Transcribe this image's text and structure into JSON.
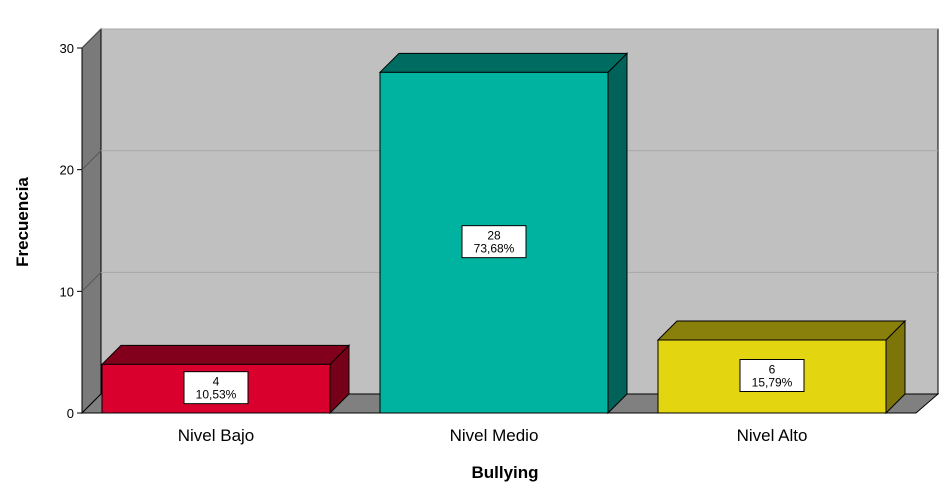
{
  "chart_data": {
    "type": "bar",
    "title": "",
    "xlabel": "Bullying",
    "ylabel": "Frecuencia",
    "ylim": [
      0,
      30
    ],
    "yticks": [
      0,
      10,
      20,
      30
    ],
    "grid": true,
    "style": "3d",
    "categories": [
      "Nivel Bajo",
      "Nivel Medio",
      "Nivel Alto"
    ],
    "values": [
      4,
      28,
      6
    ],
    "percent_labels": [
      "10,53%",
      "73,68%",
      "15,79%"
    ],
    "colors": [
      "#d9002e",
      "#00b3a0",
      "#e3d510"
    ],
    "wall_color": "#c0c0c0",
    "floor_color": "#808080"
  }
}
